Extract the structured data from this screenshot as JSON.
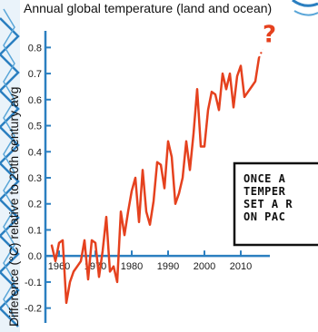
{
  "chart_data": {
    "type": "line",
    "title": "Annual global temperature (land and ocean)",
    "xlabel": "",
    "ylabel": "Difference (°C) relative to 20th century avg",
    "xlim": [
      1955,
      2020
    ],
    "ylim": [
      -0.25,
      0.85
    ],
    "xticks": [
      1960,
      1970,
      1980,
      1990,
      2000,
      2010
    ],
    "yticks": [
      -0.2,
      -0.1,
      0.0,
      0.1,
      0.2,
      0.3,
      0.4,
      0.5,
      0.6,
      0.7,
      0.8
    ],
    "ytick_labels": [
      "-0.2",
      "-0.1",
      "0.0",
      "0.1",
      "0.2",
      "0.3",
      "0.4",
      "0.5",
      "0.6",
      "0.7",
      "0.8"
    ],
    "grid": false,
    "line_color": "#e5411e",
    "axis_color": "#2b7fc0",
    "series": [
      {
        "x": [
          1958,
          1959,
          1960,
          1961,
          1962,
          1963,
          1964,
          1965,
          1966,
          1967,
          1968,
          1969,
          1970,
          1971,
          1972,
          1973,
          1974,
          1975,
          1976,
          1977,
          1978,
          1979,
          1980,
          1981,
          1982,
          1983,
          1984,
          1985,
          1986,
          1987,
          1988,
          1989,
          1990,
          1991,
          1992,
          1993,
          1994,
          1995,
          1996,
          1997,
          1998,
          1999,
          2000,
          2001,
          2002,
          2003,
          2004,
          2005,
          2006,
          2007,
          2008,
          2009,
          2010,
          2011,
          2012,
          2013,
          2014,
          2015
        ],
        "y": [
          0.04,
          -0.02,
          0.05,
          0.06,
          -0.18,
          -0.1,
          -0.06,
          -0.04,
          -0.02,
          0.06,
          -0.09,
          0.06,
          0.05,
          -0.08,
          0.02,
          0.15,
          -0.06,
          -0.04,
          -0.1,
          0.17,
          0.08,
          0.17,
          0.25,
          0.3,
          0.13,
          0.33,
          0.17,
          0.12,
          0.21,
          0.36,
          0.35,
          0.26,
          0.44,
          0.38,
          0.2,
          0.24,
          0.3,
          0.44,
          0.33,
          0.47,
          0.64,
          0.42,
          0.42,
          0.56,
          0.63,
          0.62,
          0.56,
          0.7,
          0.64,
          0.7,
          0.57,
          0.69,
          0.73,
          0.61,
          0.63,
          0.65,
          0.67,
          0.76
        ]
      }
    ],
    "annotations": [
      {
        "text": "?",
        "x": 2016,
        "y": 0.82
      }
    ]
  },
  "comic_panel": {
    "text_lines": [
      "ONCE A",
      "TEMPER",
      "SET A R",
      "ON PAC"
    ]
  }
}
